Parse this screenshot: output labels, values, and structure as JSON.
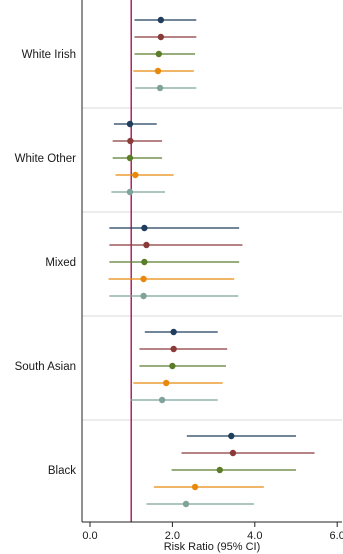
{
  "chart_data": {
    "type": "forest",
    "xlabel": "Risk Ratio (95% CI)",
    "xlim": [
      0,
      6.2
    ],
    "xticks": [
      {
        "value": 0,
        "label": "0.0"
      },
      {
        "value": 2,
        "label": "2.0"
      },
      {
        "value": 4,
        "label": "4.0"
      },
      {
        "value": 6,
        "label": "6.0"
      }
    ],
    "reference_line": 1.0,
    "reference_color": "#a3004a",
    "series_colors": [
      "#1f3d5c",
      "#8b3a3a",
      "#5b7d2a",
      "#e8890c",
      "#7fa39a"
    ],
    "groups": [
      {
        "label": "White Irish",
        "estimates": [
          {
            "rr": 1.72,
            "lo": 1.08,
            "hi": 2.58
          },
          {
            "rr": 1.72,
            "lo": 1.08,
            "hi": 2.58
          },
          {
            "rr": 1.67,
            "lo": 1.08,
            "hi": 2.55
          },
          {
            "rr": 1.65,
            "lo": 1.05,
            "hi": 2.52
          },
          {
            "rr": 1.7,
            "lo": 1.1,
            "hi": 2.58
          }
        ]
      },
      {
        "label": "White Other",
        "estimates": [
          {
            "rr": 0.97,
            "lo": 0.58,
            "hi": 1.62
          },
          {
            "rr": 0.98,
            "lo": 0.55,
            "hi": 1.75
          },
          {
            "rr": 0.97,
            "lo": 0.55,
            "hi": 1.75
          },
          {
            "rr": 1.1,
            "lo": 0.62,
            "hi": 2.03
          },
          {
            "rr": 0.97,
            "lo": 0.52,
            "hi": 1.82
          }
        ]
      },
      {
        "label": "Mixed",
        "estimates": [
          {
            "rr": 1.32,
            "lo": 0.47,
            "hi": 3.62
          },
          {
            "rr": 1.37,
            "lo": 0.47,
            "hi": 3.7
          },
          {
            "rr": 1.32,
            "lo": 0.47,
            "hi": 3.62
          },
          {
            "rr": 1.3,
            "lo": 0.45,
            "hi": 3.5
          },
          {
            "rr": 1.3,
            "lo": 0.47,
            "hi": 3.6
          }
        ]
      },
      {
        "label": "South Asian",
        "estimates": [
          {
            "rr": 2.03,
            "lo": 1.33,
            "hi": 3.1
          },
          {
            "rr": 2.03,
            "lo": 1.2,
            "hi": 3.33
          },
          {
            "rr": 2.0,
            "lo": 1.2,
            "hi": 3.3
          },
          {
            "rr": 1.85,
            "lo": 1.05,
            "hi": 3.22
          },
          {
            "rr": 1.75,
            "lo": 0.98,
            "hi": 3.1
          }
        ]
      },
      {
        "label": "Black",
        "estimates": [
          {
            "rr": 3.43,
            "lo": 2.35,
            "hi": 5.0
          },
          {
            "rr": 3.47,
            "lo": 2.22,
            "hi": 5.45
          },
          {
            "rr": 3.15,
            "lo": 1.98,
            "hi": 5.0
          },
          {
            "rr": 2.55,
            "lo": 1.55,
            "hi": 4.22
          },
          {
            "rr": 2.33,
            "lo": 1.37,
            "hi": 3.98
          }
        ]
      }
    ]
  }
}
